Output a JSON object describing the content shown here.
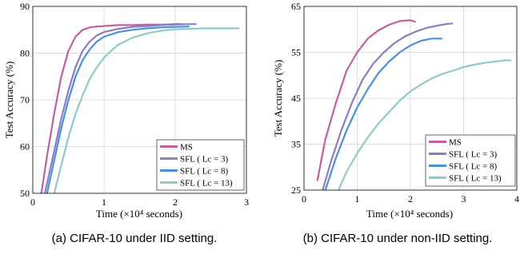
{
  "captions": [
    "(a) CIFAR-10 under IID setting.",
    "(b) CIFAR-10 under non-IID setting."
  ],
  "chart_data": [
    {
      "type": "line",
      "xlabel": "Time (×10⁴ seconds)",
      "ylabel": "Test Accuracy (%)",
      "xlim": [
        0,
        3
      ],
      "ylim": [
        50,
        90
      ],
      "xticks": [
        "0",
        "1",
        "2",
        "3"
      ],
      "yticks": [
        "50",
        "60",
        "70",
        "80",
        "90"
      ],
      "grid": true,
      "legend": "bottom-right",
      "series": [
        {
          "name": "MS",
          "color": "#c0609f",
          "x": [
            0.12,
            0.2,
            0.3,
            0.4,
            0.5,
            0.6,
            0.7,
            0.8,
            0.9,
            1.0,
            1.2,
            1.4,
            1.6,
            1.8,
            2.0,
            2.1
          ],
          "y": [
            50,
            58,
            67,
            75,
            80.5,
            83.5,
            85,
            85.5,
            85.7,
            85.8,
            86,
            86,
            86.1,
            86.1,
            86.2,
            86.2
          ]
        },
        {
          "name": "SFL ( Lc = 3)",
          "color": "#8e7cc3",
          "x": [
            0.17,
            0.3,
            0.4,
            0.5,
            0.6,
            0.7,
            0.8,
            0.9,
            1.0,
            1.2,
            1.4,
            1.6,
            1.8,
            2.0,
            2.2,
            2.3
          ],
          "y": [
            50,
            59,
            66,
            72,
            77,
            80.5,
            82.5,
            83.8,
            84.5,
            85.2,
            85.6,
            85.8,
            86,
            86.1,
            86.2,
            86.2
          ]
        },
        {
          "name": "SFL ( Lc = 8)",
          "color": "#4a90d9",
          "x": [
            0.2,
            0.3,
            0.4,
            0.5,
            0.6,
            0.7,
            0.8,
            0.9,
            1.0,
            1.2,
            1.4,
            1.6,
            1.8,
            2.0,
            2.2
          ],
          "y": [
            50,
            57,
            64,
            70,
            75,
            78.5,
            80.8,
            82.5,
            83.5,
            84.5,
            85,
            85.3,
            85.5,
            85.6,
            85.7
          ]
        },
        {
          "name": "SFL ( Lc = 13)",
          "color": "#8fc9c9",
          "x": [
            0.3,
            0.4,
            0.5,
            0.6,
            0.7,
            0.8,
            0.9,
            1.0,
            1.1,
            1.2,
            1.4,
            1.6,
            1.8,
            2.0,
            2.2,
            2.4,
            2.6,
            2.8,
            2.9
          ],
          "y": [
            50,
            56,
            62,
            67,
            71,
            74.5,
            77,
            79,
            80.5,
            81.8,
            83.3,
            84.2,
            84.8,
            85.1,
            85.2,
            85.3,
            85.3,
            85.3,
            85.3
          ]
        }
      ]
    },
    {
      "type": "line",
      "xlabel": "Time (×10⁴ seconds)",
      "ylabel": "Test Accuracy (%)",
      "xlim": [
        0,
        4
      ],
      "ylim": [
        25,
        65
      ],
      "xticks": [
        "0",
        "1",
        "2",
        "3",
        "4"
      ],
      "yticks": [
        "25",
        "35",
        "45",
        "55",
        "65"
      ],
      "grid": true,
      "legend": "bottom-right",
      "series": [
        {
          "name": "MS",
          "color": "#c0609f",
          "x": [
            0.25,
            0.4,
            0.6,
            0.8,
            1.0,
            1.2,
            1.4,
            1.6,
            1.8,
            2.0,
            2.1
          ],
          "y": [
            27,
            36,
            44,
            51,
            55,
            58,
            59.8,
            61,
            61.8,
            62,
            61.6
          ]
        },
        {
          "name": "SFL ( Lc = 3)",
          "color": "#8e7cc3",
          "x": [
            0.35,
            0.5,
            0.7,
            0.9,
            1.1,
            1.3,
            1.5,
            1.7,
            1.9,
            2.1,
            2.3,
            2.5,
            2.7,
            2.8
          ],
          "y": [
            25,
            31,
            38,
            44,
            49,
            52.5,
            55,
            57,
            58.5,
            59.5,
            60.3,
            60.8,
            61.2,
            61.3
          ]
        },
        {
          "name": "SFL ( Lc = 8)",
          "color": "#4a90d9",
          "x": [
            0.4,
            0.6,
            0.8,
            1.0,
            1.2,
            1.4,
            1.6,
            1.8,
            2.0,
            2.2,
            2.4,
            2.6
          ],
          "y": [
            25,
            32,
            38,
            43,
            47,
            50.5,
            53,
            55,
            56.5,
            57.5,
            58,
            58
          ]
        },
        {
          "name": "SFL ( Lc = 13)",
          "color": "#8fc9c9",
          "x": [
            0.65,
            0.8,
            1.0,
            1.2,
            1.4,
            1.6,
            1.8,
            2.0,
            2.2,
            2.4,
            2.6,
            2.8,
            3.0,
            3.2,
            3.4,
            3.6,
            3.8,
            3.9
          ],
          "y": [
            25,
            29,
            33,
            36.5,
            39.5,
            42,
            44.5,
            46.5,
            48,
            49.3,
            50.3,
            51,
            51.8,
            52.3,
            52.7,
            53,
            53.3,
            53.2
          ]
        }
      ]
    }
  ]
}
